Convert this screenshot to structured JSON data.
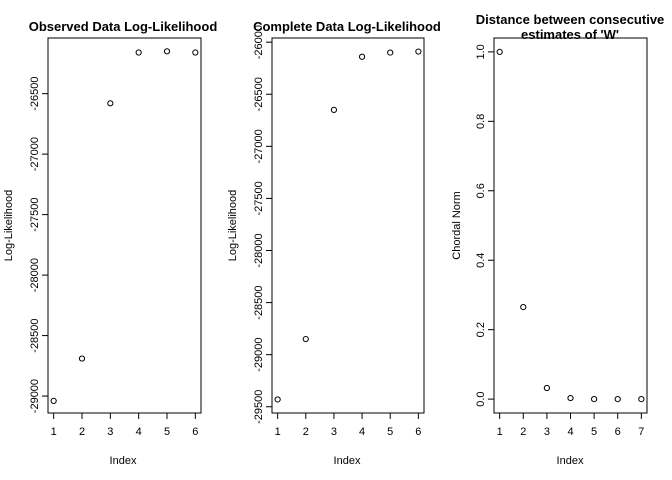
{
  "chart_data": [
    {
      "type": "scatter",
      "title": "Observed Data Log-Likelihood",
      "xlabel": "Index",
      "ylabel": "Log-Likelihood",
      "x": [
        1,
        2,
        3,
        4,
        5,
        6
      ],
      "y": [
        -29040,
        -28690,
        -26580,
        -26160,
        -26150,
        -26160
      ],
      "xticks": [
        1,
        2,
        3,
        4,
        5,
        6
      ],
      "yticks": [
        -29000,
        -28500,
        -28000,
        -27500,
        -27000,
        -26500
      ],
      "xlim": [
        0.8,
        6.2
      ],
      "ylim": [
        -29140,
        -26040
      ],
      "grid": false
    },
    {
      "type": "scatter",
      "title": "Complete Data Log-Likelihood",
      "xlabel": "Index",
      "ylabel": "Log-Likelihood",
      "x": [
        1,
        2,
        3,
        4,
        5,
        6
      ],
      "y": [
        -29430,
        -28850,
        -26650,
        -26140,
        -26100,
        -26090
      ],
      "xticks": [
        1,
        2,
        3,
        4,
        5,
        6
      ],
      "yticks": [
        -29500,
        -29000,
        -28500,
        -28000,
        -27500,
        -27000,
        -26500,
        -26000
      ],
      "xlim": [
        0.8,
        6.2
      ],
      "ylim": [
        -29560,
        -25960
      ],
      "grid": false
    },
    {
      "type": "scatter",
      "title": "Distance between consecutive estimates of 'W'",
      "title_lines": [
        "Distance between consecutive",
        "estimates of 'W'"
      ],
      "xlabel": "Index",
      "ylabel": "Chordal Norm",
      "x": [
        1,
        2,
        3,
        4,
        5,
        6,
        7
      ],
      "y": [
        1.0,
        0.265,
        0.032,
        0.003,
        0.0,
        0.0,
        0.0
      ],
      "xticks": [
        1,
        2,
        3,
        4,
        5,
        6,
        7
      ],
      "yticks": [
        "0.0",
        "0.2",
        "0.4",
        "0.6",
        "0.8",
        "1.0"
      ],
      "xlim": [
        0.76,
        7.24
      ],
      "ylim": [
        -0.04,
        1.04
      ],
      "grid": false
    }
  ]
}
